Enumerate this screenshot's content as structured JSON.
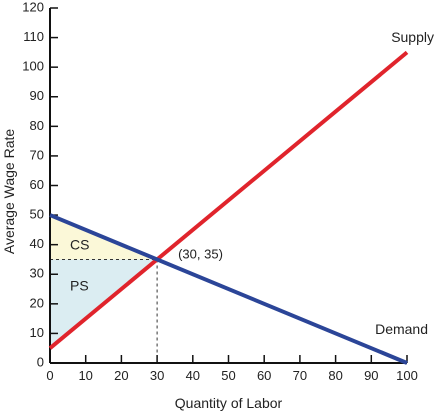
{
  "chart_data": {
    "type": "line",
    "xlabel": "Quantity of Labor",
    "ylabel": "Average Wage Rate",
    "xlim": [
      0,
      100
    ],
    "ylim": [
      0,
      120
    ],
    "x_ticks": [
      0,
      10,
      20,
      30,
      40,
      50,
      60,
      70,
      80,
      90,
      100
    ],
    "y_ticks": [
      0,
      10,
      20,
      30,
      40,
      50,
      60,
      70,
      80,
      90,
      100,
      110,
      120
    ],
    "grid": false,
    "series": [
      {
        "name": "Supply",
        "x": [
          0,
          100
        ],
        "y": [
          5,
          105
        ],
        "color": "#e0242c"
      },
      {
        "name": "Demand",
        "x": [
          0,
          100
        ],
        "y": [
          50,
          0
        ],
        "color": "#2b4598"
      }
    ],
    "equilibrium": {
      "label": "(30, 35)",
      "x": 30,
      "y": 35
    },
    "areas": [
      {
        "name": "CS",
        "vertices": [
          [
            0,
            50
          ],
          [
            0,
            35
          ],
          [
            30,
            35
          ]
        ],
        "color": "#fbf8d8"
      },
      {
        "name": "PS",
        "vertices": [
          [
            0,
            35
          ],
          [
            0,
            5
          ],
          [
            30,
            35
          ]
        ],
        "color": "#dbedf2"
      }
    ]
  }
}
